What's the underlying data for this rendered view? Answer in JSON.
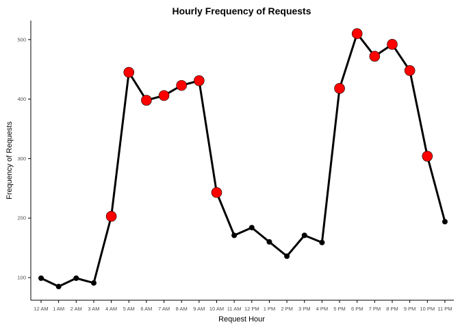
{
  "chart_data": {
    "type": "line",
    "title": "Hourly Frequency of Requests",
    "xlabel": "Request Hour",
    "ylabel": "Frequency of Requests",
    "categories": [
      "12 AM",
      "1 AM",
      "2 AM",
      "3 AM",
      "4 AM",
      "5 AM",
      "6 AM",
      "7 AM",
      "8 AM",
      "9 AM",
      "10 AM",
      "11 AM",
      "12 PM",
      "1 PM",
      "2 PM",
      "3 PM",
      "4 PM",
      "5 PM",
      "6 PM",
      "7 PM",
      "8 PM",
      "9 PM",
      "10 PM",
      "11 PM"
    ],
    "series": [
      {
        "values": [
          99,
          85,
          99,
          91,
          203,
          445,
          398,
          406,
          423,
          431,
          243,
          171,
          184,
          160,
          136,
          171,
          159,
          418,
          510,
          472,
          492,
          448,
          304,
          194
        ],
        "highlighted": [
          false,
          false,
          false,
          false,
          true,
          true,
          true,
          true,
          true,
          true,
          true,
          false,
          false,
          false,
          false,
          false,
          false,
          true,
          true,
          true,
          true,
          true,
          true,
          false
        ]
      }
    ],
    "yticks": [
      100,
      200,
      300,
      400,
      500
    ],
    "ylim": [
      62,
      532
    ],
    "grid": false,
    "line_color": "#000000",
    "point_color": "#000000",
    "highlight_color": "#ff0000"
  }
}
